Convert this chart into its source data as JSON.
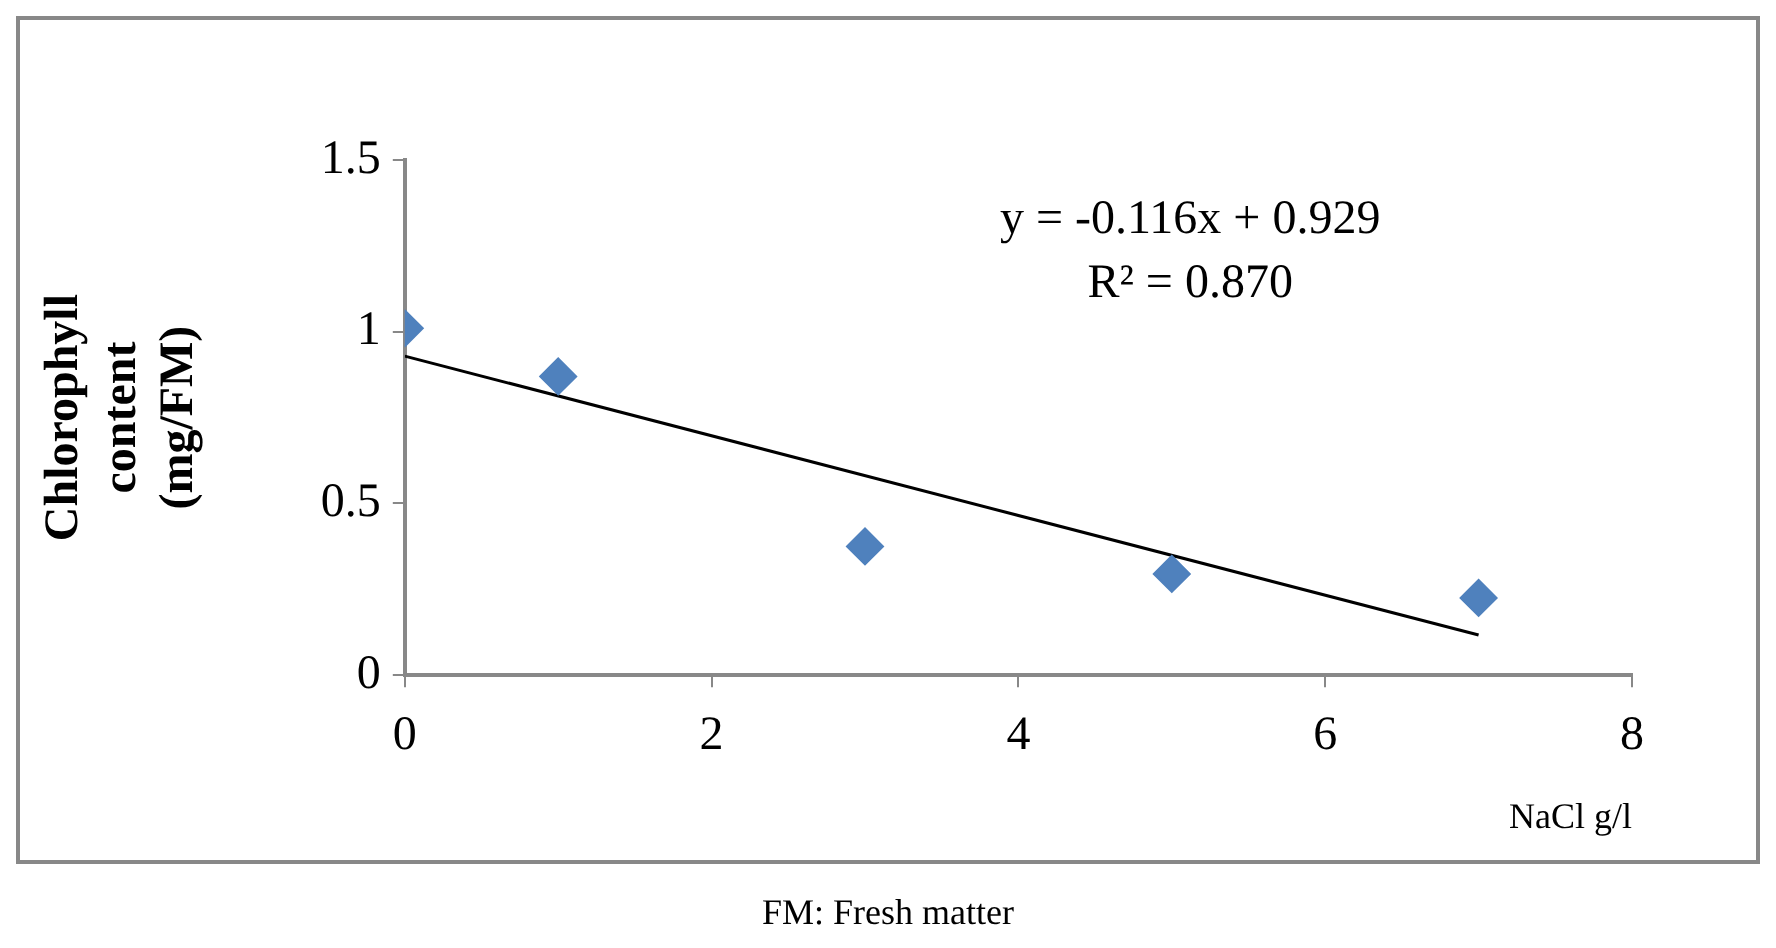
{
  "chart_data": {
    "type": "scatter",
    "xlabel": "NaCl g/l",
    "ylabel": "Chlorophyll content (mg/FM)",
    "x": [
      0,
      1,
      3,
      5,
      7
    ],
    "series": [
      {
        "type": "scatter",
        "color": "#4f81bd",
        "marker": "diamond",
        "values": [
          1.01,
          0.87,
          0.375,
          0.295,
          0.225
        ]
      },
      {
        "type": "line",
        "color": "#000000",
        "marker": "none",
        "x": [
          0,
          7
        ],
        "values": [
          0.929,
          0.117
        ]
      }
    ],
    "xlim": [
      0,
      8
    ],
    "xticks": [
      0,
      2,
      4,
      6,
      8
    ],
    "ylim": [
      0,
      1.5
    ],
    "yticks": [
      0,
      0.5,
      1,
      1.5
    ],
    "annotations": [
      "y = -0.116x + 0.929",
      "R² = 0.870",
      "FM: Fresh matter"
    ]
  }
}
